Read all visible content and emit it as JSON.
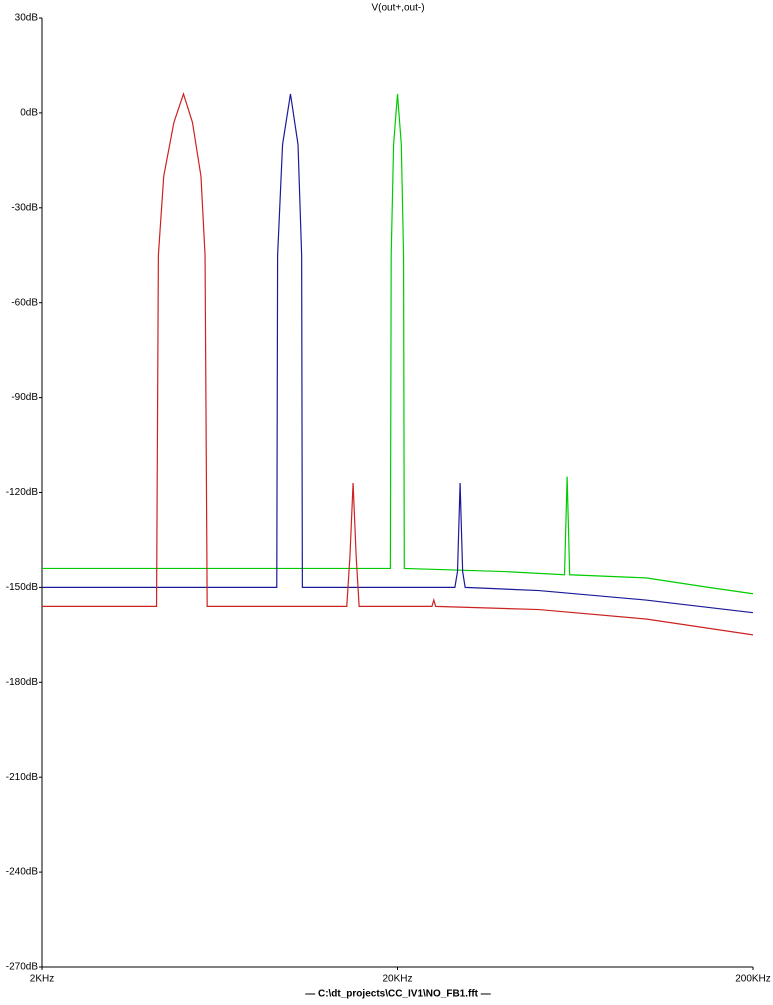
{
  "chart_data": {
    "type": "line",
    "title": "V(out+,out-)",
    "title_color": "#00cc00",
    "footer": "— C:\\dt_projects\\CC_IV1\\NO_FB1.fft —",
    "xscale": "log",
    "xlim": [
      2000,
      200000
    ],
    "xticks": [
      {
        "value": 2000,
        "label": "2KHz"
      },
      {
        "value": 20000,
        "label": "20KHz"
      },
      {
        "value": 200000,
        "label": "200KHz"
      }
    ],
    "ylim": [
      -270,
      30
    ],
    "yticks": [
      {
        "value": 30,
        "label": "30dB"
      },
      {
        "value": 0,
        "label": "0dB"
      },
      {
        "value": -30,
        "label": "-30dB"
      },
      {
        "value": -60,
        "label": "-60dB"
      },
      {
        "value": -90,
        "label": "-90dB"
      },
      {
        "value": -120,
        "label": "-120dB"
      },
      {
        "value": -150,
        "label": "-150dB"
      },
      {
        "value": -180,
        "label": "-180dB"
      },
      {
        "value": -210,
        "label": "-210dB"
      },
      {
        "value": -240,
        "label": "-240dB"
      },
      {
        "value": -270,
        "label": "-270dB"
      }
    ],
    "grid": false,
    "series": [
      {
        "color": "#00cc00",
        "x": [
          2000,
          19100,
          19200,
          19500,
          20000,
          20500,
          20800,
          20900,
          40000,
          59000,
          60000,
          61000,
          100000,
          150000,
          200000
        ],
        "values": [
          -144,
          -144,
          -45,
          -10,
          6,
          -10,
          -45,
          -144,
          -145,
          -146,
          -115,
          -146,
          -147,
          -150,
          -152
        ]
      },
      {
        "color": "#1a1a99",
        "x": [
          2000,
          9150,
          9200,
          9500,
          10000,
          10500,
          10750,
          10800,
          29000,
          29500,
          30000,
          30500,
          31000,
          50000,
          100000,
          200000
        ],
        "values": [
          -150,
          -150,
          -45,
          -10,
          6,
          -10,
          -45,
          -150,
          -150,
          -145,
          -117,
          -145,
          -150,
          -151,
          -154,
          -158
        ]
      },
      {
        "color": "#cc2222",
        "x": [
          2000,
          4200,
          4250,
          4400,
          4700,
          5000,
          5300,
          5600,
          5750,
          5830,
          14400,
          14700,
          15000,
          15300,
          15600,
          25000,
          25300,
          25600,
          50000,
          100000,
          200000
        ],
        "values": [
          -156,
          -156,
          -45,
          -20,
          -3,
          6,
          -3,
          -20,
          -45,
          -156,
          -156,
          -140,
          -117,
          -140,
          -156,
          -156,
          -154,
          -156,
          -157,
          -160,
          -165
        ]
      }
    ]
  }
}
